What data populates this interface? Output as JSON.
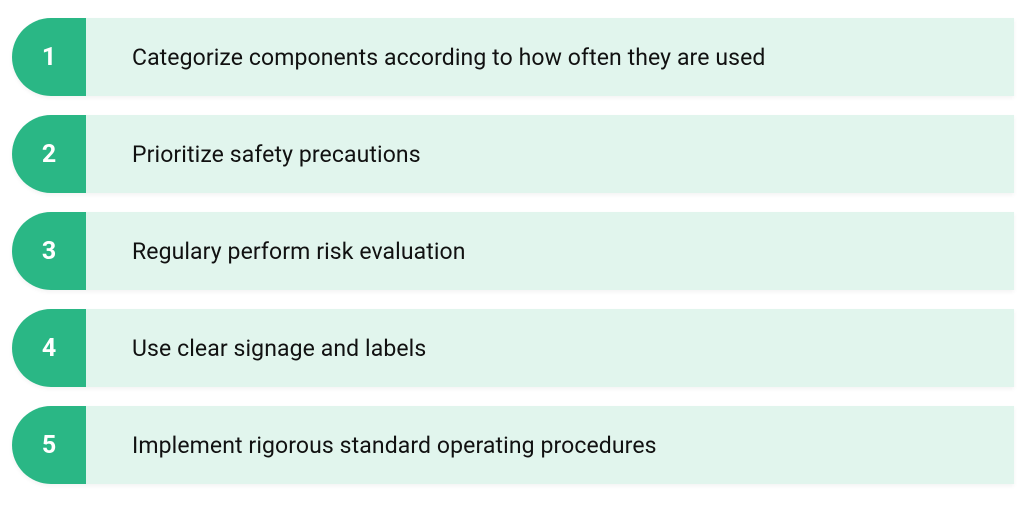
{
  "list": {
    "number_bg_color": "#2ab785",
    "number_text_color": "#ffffff",
    "panel_bg_color": "#e1f5ed",
    "panel_text_color": "#111111",
    "items": [
      {
        "num": "1",
        "text": "Categorize components according to how often they are used"
      },
      {
        "num": "2",
        "text": "Prioritize safety precautions"
      },
      {
        "num": "3",
        "text": "Regulary perform risk evaluation"
      },
      {
        "num": "4",
        "text": "Use clear signage and labels"
      },
      {
        "num": "5",
        "text": "Implement rigorous standard operating procedures"
      }
    ]
  }
}
